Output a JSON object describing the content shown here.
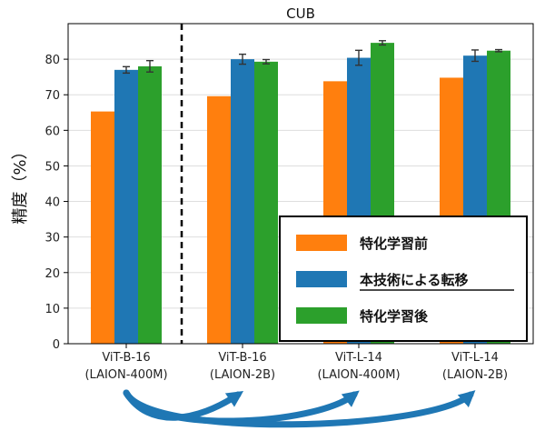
{
  "chart_data": {
    "type": "bar",
    "title": "CUB",
    "ylabel": "精度（%）",
    "xlabel": "",
    "ylim": [
      0,
      90
    ],
    "yticks": [
      0,
      10,
      20,
      30,
      40,
      50,
      60,
      70,
      80
    ],
    "grid": "y",
    "legend_position": "lower-right",
    "categories": [
      [
        "ViT-B-16",
        "(LAION-400M)"
      ],
      [
        "ViT-B-16",
        "(LAION-2B)"
      ],
      [
        "ViT-L-14",
        "(LAION-400M)"
      ],
      [
        "ViT-L-14",
        "(LAION-2B)"
      ]
    ],
    "series": [
      {
        "name": "特化学習前",
        "color": "#ff7f0e",
        "values": [
          65.3,
          69.6,
          73.8,
          74.8
        ],
        "errors": [
          0,
          0,
          0,
          0
        ]
      },
      {
        "name": "本技術による転移",
        "color": "#1f77b4",
        "values": [
          77.0,
          80.0,
          80.4,
          81.0
        ],
        "errors": [
          0.9,
          1.4,
          2.1,
          1.6
        ]
      },
      {
        "name": "特化学習後",
        "color": "#2ca02c",
        "values": [
          78.0,
          79.3,
          84.6,
          82.4
        ],
        "errors": [
          1.6,
          0.6,
          0.6,
          0.3
        ]
      }
    ],
    "separator_after_category": 0,
    "transfer_arrows": {
      "from": 0,
      "to": [
        1,
        2,
        3
      ],
      "color": "#1f77b4"
    }
  }
}
